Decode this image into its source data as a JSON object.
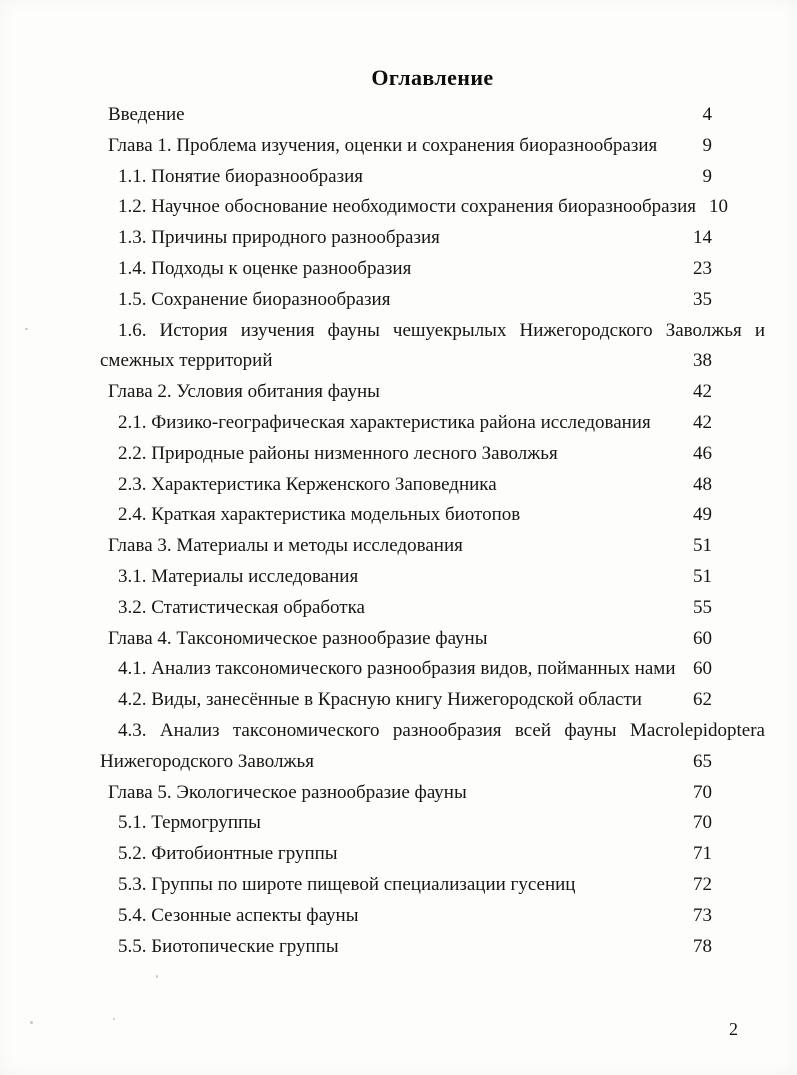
{
  "document": {
    "title": "Оглавление",
    "page_number": "2"
  },
  "toc": {
    "entries": [
      {
        "text": "Введение",
        "page": "4",
        "level": "chapter"
      },
      {
        "text": "Глава 1. Проблема изучения, оценки и сохранения биоразнообразия",
        "page": "9",
        "level": "chapter"
      },
      {
        "text": "1.1. Понятие биоразнообразия",
        "page": "9",
        "level": "section"
      },
      {
        "text": "1.2. Научное обоснование необходимости сохранения биоразнообразия",
        "page": "10",
        "level": "section"
      },
      {
        "text": "1.3. Причины природного разнообразия",
        "page": "14",
        "level": "section"
      },
      {
        "text": "1.4. Подходы к оценке разнообразия",
        "page": "23",
        "level": "section"
      },
      {
        "text": "1.5. Сохранение биоразнообразия",
        "page": "35",
        "level": "section"
      },
      {
        "line1": "1.6. История изучения фауны чешуекрылых Нижегородского Заволжья и",
        "line2": "смежных территорий",
        "page": "38",
        "level": "section",
        "wrapped": true
      },
      {
        "text": "Глава 2. Условия обитания фауны",
        "page": "42",
        "level": "chapter"
      },
      {
        "text": "2.1. Физико-географическая характеристика района исследования",
        "page": "42",
        "level": "section"
      },
      {
        "text": "2.2. Природные районы низменного лесного Заволжья",
        "page": "46",
        "level": "section"
      },
      {
        "text": "2.3. Характеристика Керженского Заповедника",
        "page": "48",
        "level": "section"
      },
      {
        "text": "2.4. Краткая характеристика модельных биотопов",
        "page": "49",
        "level": "section"
      },
      {
        "text": "Глава 3. Материалы и методы исследования",
        "page": "51",
        "level": "chapter"
      },
      {
        "text": "3.1. Материалы исследования",
        "page": "51",
        "level": "section"
      },
      {
        "text": "3.2. Статистическая обработка",
        "page": "55",
        "level": "section"
      },
      {
        "text": "Глава 4. Таксономическое разнообразие фауны",
        "page": "60",
        "level": "chapter"
      },
      {
        "text": "4.1. Анализ таксономического разнообразия видов, пойманных нами",
        "page": "60",
        "level": "section"
      },
      {
        "text": "4.2. Виды, занесённые в Красную книгу Нижегородской области",
        "page": "62",
        "level": "section"
      },
      {
        "line1": "4.3. Анализ таксономического разнообразия всей фауны Macrolepidoptera",
        "line2": "Нижегородского Заволжья",
        "page": "65",
        "level": "section",
        "wrapped": true
      },
      {
        "text": "Глава 5. Экологическое разнообразие фауны",
        "page": "70",
        "level": "chapter"
      },
      {
        "text": "5.1. Термогруппы",
        "page": "70",
        "level": "section"
      },
      {
        "text": "5.2. Фитобионтные группы",
        "page": "71",
        "level": "section"
      },
      {
        "text": "5.3. Группы по широте пищевой специализации гусениц",
        "page": "72",
        "level": "section"
      },
      {
        "text": "5.4. Сезонные аспекты фауны",
        "page": "73",
        "level": "section"
      },
      {
        "text": "5.5. Биотопические группы",
        "page": "78",
        "level": "section"
      }
    ]
  }
}
